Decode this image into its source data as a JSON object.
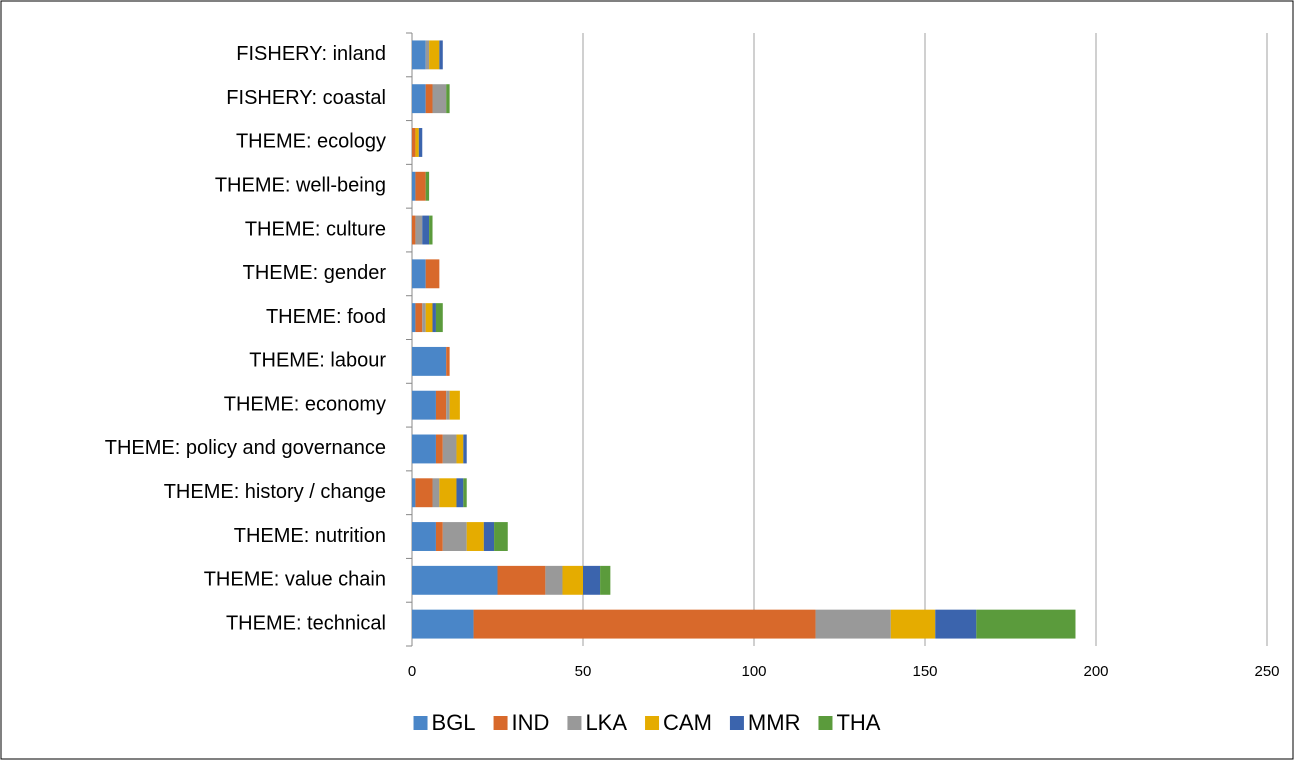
{
  "chart_data": {
    "type": "bar",
    "orientation": "horizontal",
    "stacked": true,
    "categories": [
      "FISHERY: inland",
      "FISHERY: coastal",
      "THEME: ecology",
      "THEME: well-being",
      "THEME: culture",
      "THEME: gender",
      "THEME: food",
      "THEME: labour",
      "THEME: economy",
      "THEME: policy and governance",
      "THEME: history / change",
      "THEME: nutrition",
      "THEME: value chain",
      "THEME: technical"
    ],
    "series": [
      {
        "name": "BGL",
        "color": "#4a86c8",
        "values": [
          4,
          4,
          0,
          1,
          0,
          4,
          1,
          10,
          7,
          7,
          1,
          7,
          25,
          18
        ]
      },
      {
        "name": "IND",
        "color": "#d8692b",
        "values": [
          0,
          2,
          1,
          3,
          1,
          4,
          2,
          1,
          3,
          2,
          5,
          2,
          14,
          100
        ]
      },
      {
        "name": "LKA",
        "color": "#999999",
        "values": [
          1,
          4,
          0,
          0,
          2,
          0,
          1,
          0,
          1,
          4,
          2,
          7,
          5,
          22
        ]
      },
      {
        "name": "CAM",
        "color": "#e5ac00",
        "values": [
          3,
          0,
          1,
          0,
          0,
          0,
          2,
          0,
          3,
          2,
          5,
          5,
          6,
          13
        ]
      },
      {
        "name": "MMR",
        "color": "#3b64ad",
        "values": [
          1,
          0,
          1,
          0,
          2,
          0,
          1,
          0,
          0,
          1,
          2,
          3,
          5,
          12
        ]
      },
      {
        "name": "THA",
        "color": "#5b9b3c",
        "values": [
          0,
          1,
          0,
          1,
          1,
          0,
          2,
          0,
          0,
          0,
          1,
          4,
          3,
          29
        ]
      }
    ],
    "xlim": [
      0,
      250
    ],
    "xticks": [
      0,
      50,
      100,
      150,
      200,
      250
    ],
    "grid": true,
    "legend": "bottom"
  }
}
